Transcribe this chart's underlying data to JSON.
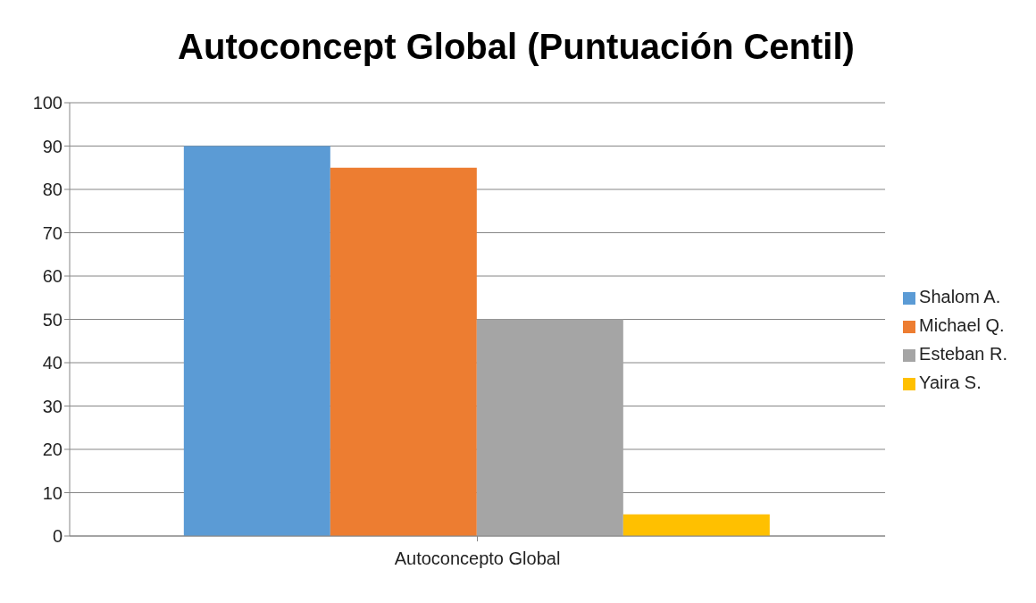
{
  "chart_data": {
    "type": "bar",
    "title": "Autoconcept Global (Puntuación Centil)",
    "categories": [
      "Autoconcepto Global"
    ],
    "series": [
      {
        "name": "Shalom A.",
        "color": "#5b9bd5",
        "values": [
          90
        ]
      },
      {
        "name": "Michael Q.",
        "color": "#ed7d31",
        "values": [
          85
        ]
      },
      {
        "name": "Esteban R.",
        "color": "#a5a5a5",
        "values": [
          50
        ]
      },
      {
        "name": "Yaira S.",
        "color": "#ffc000",
        "values": [
          5
        ]
      }
    ],
    "ylim": [
      0,
      100
    ],
    "yticks": [
      0,
      10,
      20,
      30,
      40,
      50,
      60,
      70,
      80,
      90,
      100
    ],
    "grid": "y",
    "legend": "right"
  }
}
